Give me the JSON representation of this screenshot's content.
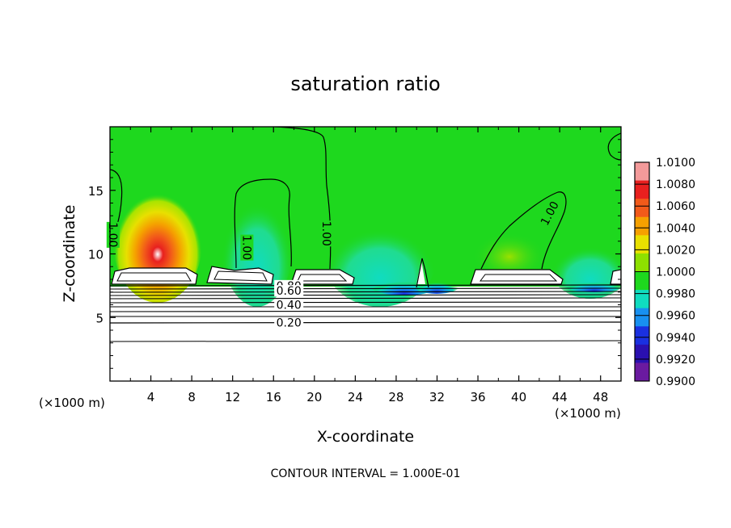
{
  "chart_data": {
    "type": "heatmap",
    "title": "saturation ratio",
    "xlabel": "X-coordinate",
    "ylabel": "Z-coordinate",
    "x_unit_label": "(×1000 m)",
    "y_unit_label": "(×1000 m)",
    "footer": "CONTOUR INTERVAL = 1.000E-01",
    "xlim": [
      0,
      50
    ],
    "ylim": [
      0,
      20
    ],
    "x_ticks": [
      4,
      8,
      12,
      16,
      20,
      24,
      28,
      32,
      36,
      40,
      44,
      48
    ],
    "y_ticks": [
      5,
      10,
      15
    ],
    "colorbar": {
      "min": 0.99,
      "max": 1.01,
      "labels": [
        "1.0100",
        "1.0080",
        "1.0060",
        "1.0040",
        "1.0020",
        "1.0000",
        "0.9980",
        "0.9960",
        "0.9940",
        "0.9920",
        "0.9900"
      ],
      "colors": [
        "#f39a9a",
        "#e8201f",
        "#f25a1a",
        "#f5a000",
        "#e8e000",
        "#8ee000",
        "#1ed81e",
        "#10dcc0",
        "#1890f0",
        "#1a30e0",
        "#2a10b0",
        "#6a1aa0"
      ]
    },
    "contour_labels": [
      {
        "text": "1.00",
        "x": 0.3,
        "z": 11.5
      },
      {
        "text": "1.00",
        "x": 13.4,
        "z": 10.5
      },
      {
        "text": "1.00",
        "x": 21.2,
        "z": 11.6
      },
      {
        "text": "1.00",
        "x": 43.0,
        "z": 13.2
      },
      {
        "text": "0.80",
        "x": 17.5,
        "z": 7.5
      },
      {
        "text": "0.60",
        "x": 17.5,
        "z": 7.1
      },
      {
        "text": "0.40",
        "x": 17.5,
        "z": 6.0
      },
      {
        "text": "0.20",
        "x": 17.5,
        "z": 4.6
      }
    ],
    "grid": false
  }
}
